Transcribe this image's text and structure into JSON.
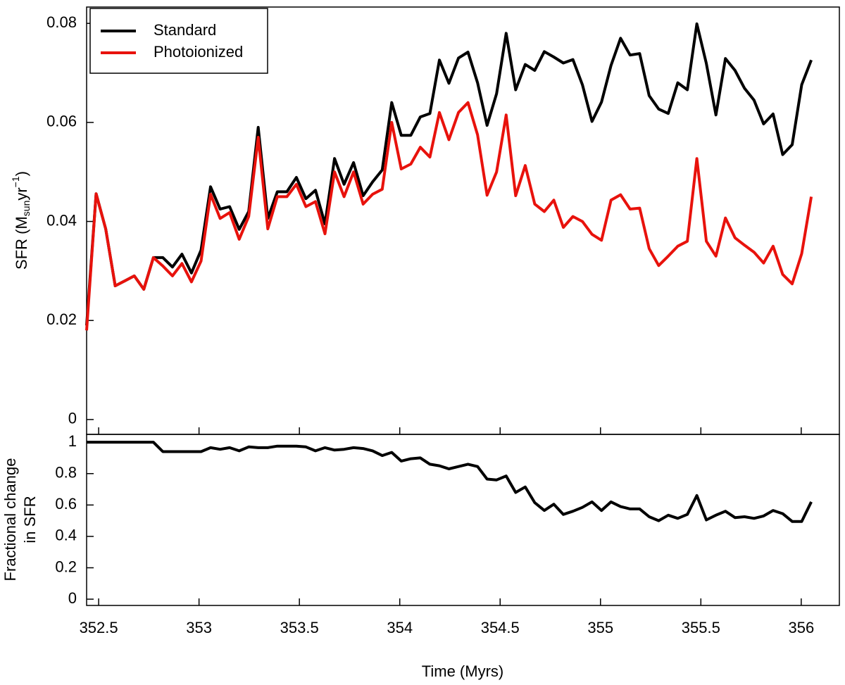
{
  "chart_data": [
    {
      "type": "line",
      "y_label": {
        "text": "SFR (M",
        "sub": "sun",
        "mid": "yr",
        "sup": "−1",
        "end": ")"
      },
      "x": [
        352.44,
        352.4875,
        352.535,
        352.5825,
        352.63,
        352.6775,
        352.725,
        352.7725,
        352.82,
        352.8675,
        352.915,
        352.9625,
        353.01,
        353.0575,
        353.105,
        353.1525,
        353.2,
        353.2475,
        353.295,
        353.3425,
        353.39,
        353.4375,
        353.485,
        353.5325,
        353.58,
        353.6275,
        353.675,
        353.7225,
        353.77,
        353.8175,
        353.865,
        353.9125,
        353.96,
        354.0075,
        354.055,
        354.1025,
        354.15,
        354.1975,
        354.245,
        354.2925,
        354.34,
        354.3875,
        354.435,
        354.4825,
        354.53,
        354.5775,
        354.625,
        354.6725,
        354.72,
        354.7675,
        354.815,
        354.8625,
        354.91,
        354.9575,
        355.005,
        355.0525,
        355.1,
        355.1475,
        355.195,
        355.2425,
        355.29,
        355.3375,
        355.385,
        355.4325,
        355.48,
        355.5275,
        355.575,
        355.6225,
        355.67,
        355.7175,
        355.765,
        355.8125,
        355.86,
        355.9075,
        355.955,
        356.0025,
        356.05
      ],
      "series": [
        {
          "name": "Standard",
          "color": "#000000",
          "values": [
            0.019,
            0.0456,
            0.0385,
            0.027,
            0.028,
            0.029,
            0.0263,
            0.0327,
            0.0327,
            0.0308,
            0.0334,
            0.0296,
            0.0342,
            0.047,
            0.0425,
            0.043,
            0.0384,
            0.042,
            0.059,
            0.0406,
            0.046,
            0.046,
            0.0489,
            0.0446,
            0.0463,
            0.0395,
            0.0527,
            0.0475,
            0.0519,
            0.0452,
            0.048,
            0.0504,
            0.064,
            0.0574,
            0.0574,
            0.0611,
            0.0618,
            0.0726,
            0.0679,
            0.073,
            0.0742,
            0.068,
            0.0594,
            0.0658,
            0.078,
            0.0666,
            0.0717,
            0.0705,
            0.0743,
            0.0732,
            0.072,
            0.0727,
            0.0676,
            0.0602,
            0.0641,
            0.0715,
            0.077,
            0.0736,
            0.0739,
            0.0654,
            0.0627,
            0.0618,
            0.068,
            0.0666,
            0.0799,
            0.0719,
            0.0615,
            0.0729,
            0.0705,
            0.0669,
            0.0645,
            0.0597,
            0.0617,
            0.0535,
            0.0555,
            0.0676,
            0.0726
          ]
        },
        {
          "name": "Photoionized",
          "color": "#e8120c",
          "values": [
            0.018,
            0.0456,
            0.0385,
            0.027,
            0.028,
            0.029,
            0.0263,
            0.0327,
            0.031,
            0.029,
            0.0315,
            0.0278,
            0.032,
            0.0455,
            0.0406,
            0.0418,
            0.0364,
            0.041,
            0.057,
            0.0385,
            0.045,
            0.045,
            0.0475,
            0.043,
            0.044,
            0.0375,
            0.05,
            0.045,
            0.05,
            0.0435,
            0.0455,
            0.0465,
            0.06,
            0.0506,
            0.0516,
            0.055,
            0.053,
            0.062,
            0.0565,
            0.062,
            0.064,
            0.0575,
            0.0453,
            0.05,
            0.0615,
            0.0452,
            0.0513,
            0.0435,
            0.042,
            0.0443,
            0.0388,
            0.041,
            0.04,
            0.0374,
            0.0362,
            0.0443,
            0.0454,
            0.0425,
            0.0427,
            0.0345,
            0.0311,
            0.033,
            0.035,
            0.036,
            0.0527,
            0.036,
            0.033,
            0.0407,
            0.0367,
            0.0352,
            0.0338,
            0.0316,
            0.035,
            0.0293,
            0.0274,
            0.0335,
            0.045
          ]
        }
      ],
      "xlim": [
        352.44,
        356.19
      ],
      "ylim": [
        -0.003,
        0.0833
      ],
      "yticks": [
        0,
        0.02,
        0.04,
        0.06,
        0.08
      ],
      "legend": "upper left"
    },
    {
      "type": "line",
      "y_label": [
        "Fractional change",
        "in SFR"
      ],
      "x_label": "Time (Myrs)",
      "x": [
        352.44,
        352.4875,
        352.535,
        352.5825,
        352.63,
        352.6775,
        352.725,
        352.7725,
        352.82,
        352.8675,
        352.915,
        352.9625,
        353.01,
        353.0575,
        353.105,
        353.1525,
        353.2,
        353.2475,
        353.295,
        353.3425,
        353.39,
        353.4375,
        353.485,
        353.5325,
        353.58,
        353.6275,
        353.675,
        353.7225,
        353.77,
        353.8175,
        353.865,
        353.9125,
        353.96,
        354.0075,
        354.055,
        354.1025,
        354.15,
        354.1975,
        354.245,
        354.2925,
        354.34,
        354.3875,
        354.435,
        354.4825,
        354.53,
        354.5775,
        354.625,
        354.6725,
        354.72,
        354.7675,
        354.815,
        354.8625,
        354.91,
        354.9575,
        355.005,
        355.0525,
        355.1,
        355.1475,
        355.195,
        355.2425,
        355.29,
        355.3375,
        355.385,
        355.4325,
        355.48,
        355.5275,
        355.575,
        355.6225,
        355.67,
        355.7175,
        355.765,
        355.8125,
        355.86,
        355.9075,
        355.955,
        356.0025,
        356.05
      ],
      "series": [
        {
          "color": "#000000",
          "values": [
            1,
            1,
            1,
            1,
            1,
            1,
            1,
            1,
            0.94,
            0.94,
            0.94,
            0.94,
            0.94,
            0.965,
            0.955,
            0.965,
            0.945,
            0.97,
            0.965,
            0.965,
            0.975,
            0.975,
            0.975,
            0.97,
            0.945,
            0.965,
            0.95,
            0.955,
            0.965,
            0.96,
            0.945,
            0.915,
            0.935,
            0.88,
            0.895,
            0.9,
            0.86,
            0.85,
            0.83,
            0.845,
            0.86,
            0.845,
            0.765,
            0.76,
            0.785,
            0.68,
            0.715,
            0.615,
            0.565,
            0.605,
            0.54,
            0.56,
            0.585,
            0.62,
            0.565,
            0.62,
            0.59,
            0.575,
            0.575,
            0.525,
            0.5,
            0.535,
            0.515,
            0.54,
            0.66,
            0.505,
            0.535,
            0.56,
            0.52,
            0.525,
            0.515,
            0.53,
            0.565,
            0.545,
            0.495,
            0.495,
            0.62
          ]
        }
      ],
      "xlim": [
        352.44,
        356.19
      ],
      "ylim": [
        -0.04,
        1.05
      ],
      "xticks": [
        352.5,
        353,
        353.5,
        354,
        354.5,
        355,
        355.5,
        356
      ],
      "yticks": [
        0,
        0.2,
        0.4,
        0.6,
        0.8,
        1
      ]
    }
  ]
}
